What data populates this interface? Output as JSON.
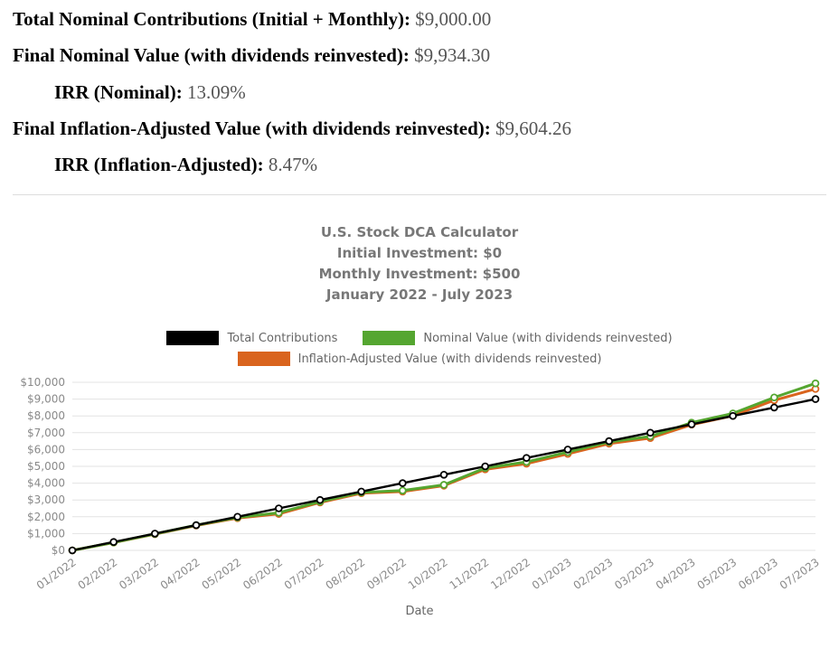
{
  "summary": {
    "items": [
      {
        "label": "Total Nominal Contributions (Initial + Monthly):",
        "value": "$9,000.00"
      },
      {
        "label": "Final Nominal Value (with dividends reinvested):",
        "value": "$9,934.30"
      },
      {
        "label": "IRR (Nominal):",
        "value": "13.09%"
      },
      {
        "label": "Final Inflation-Adjusted Value (with dividends reinvested):",
        "value": "$9,604.26"
      },
      {
        "label": "IRR (Inflation-Adjusted):",
        "value": "8.47%"
      }
    ]
  },
  "chart": {
    "title_lines": [
      "U.S. Stock DCA Calculator",
      "Initial Investment: $0",
      "Monthly Investment: $500",
      "January 2022 - July 2023"
    ],
    "xlabel": "Date"
  },
  "chart_data": {
    "type": "line",
    "title": "U.S. Stock DCA Calculator",
    "xlabel": "Date",
    "ylabel": "",
    "ylim": [
      0,
      10000
    ],
    "ytick_step": 1000,
    "ytick_labels": [
      "$0",
      "$1,000",
      "$2,000",
      "$3,000",
      "$4,000",
      "$5,000",
      "$6,000",
      "$7,000",
      "$8,000",
      "$9,000",
      "$10,000"
    ],
    "grid": true,
    "legend_position": "top",
    "categories": [
      "01/2022",
      "02/2022",
      "03/2022",
      "04/2022",
      "05/2022",
      "06/2022",
      "07/2022",
      "08/2022",
      "09/2022",
      "10/2022",
      "11/2022",
      "12/2022",
      "01/2023",
      "02/2023",
      "03/2023",
      "04/2023",
      "05/2023",
      "06/2023",
      "07/2023"
    ],
    "series": [
      {
        "name": "Total Contributions",
        "color": "#000000",
        "values": [
          0,
          500,
          1000,
          1500,
          2000,
          2500,
          3000,
          3500,
          4000,
          4500,
          5000,
          5500,
          6000,
          6500,
          7000,
          7500,
          8000,
          8500,
          9000
        ]
      },
      {
        "name": "Nominal Value (with dividends reinvested)",
        "color": "#55a630",
        "values": [
          0,
          470,
          980,
          1500,
          1960,
          2240,
          2900,
          3450,
          3560,
          3900,
          4900,
          5260,
          5850,
          6450,
          6780,
          7600,
          8150,
          9100,
          9934.3
        ]
      },
      {
        "name": "Inflation-Adjusted Value (with dividends reinvested)",
        "color": "#d9641e",
        "values": [
          0,
          465,
          965,
          1480,
          1920,
          2170,
          2850,
          3400,
          3500,
          3850,
          4820,
          5160,
          5740,
          6350,
          6680,
          7480,
          8010,
          8930,
          9604.26
        ]
      }
    ]
  }
}
